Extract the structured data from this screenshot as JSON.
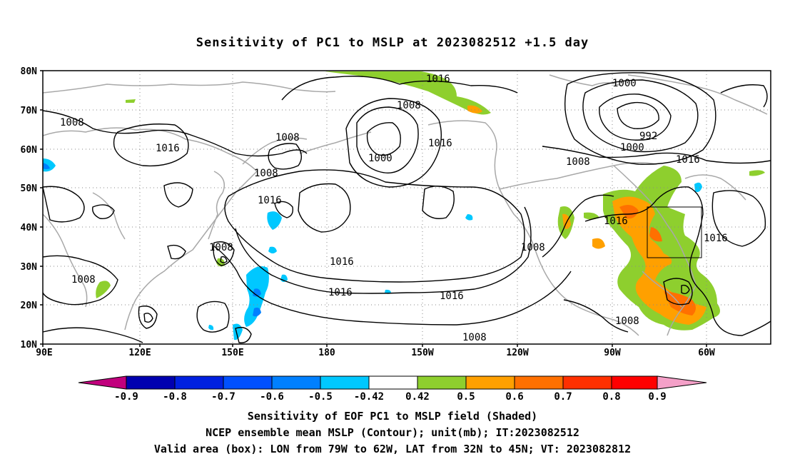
{
  "title": "Sensitivity of PC1 to MSLP at 2023082512 +1.5 day",
  "lat_labels": [
    "80N",
    "70N",
    "60N",
    "50N",
    "40N",
    "30N",
    "20N",
    "10N"
  ],
  "lon_labels": [
    "90E",
    "120E",
    "150E",
    "180",
    "150W",
    "120W",
    "90W",
    "60W"
  ],
  "contour_labels": [
    {
      "text": "1016",
      "id": "c1"
    },
    {
      "text": "1000",
      "id": "c2"
    },
    {
      "text": "1008",
      "id": "c3"
    },
    {
      "text": "992",
      "id": "c4"
    },
    {
      "text": "1000",
      "id": "c5"
    },
    {
      "text": "1008",
      "id": "c6"
    },
    {
      "text": "1016",
      "id": "c7"
    },
    {
      "text": "1016",
      "id": "c8"
    },
    {
      "text": "1008",
      "id": "c9"
    },
    {
      "text": "1008",
      "id": "c10"
    },
    {
      "text": "1000",
      "id": "c11"
    },
    {
      "text": "1008",
      "id": "c12"
    },
    {
      "text": "1016",
      "id": "c13"
    },
    {
      "text": "1008",
      "id": "c14"
    },
    {
      "text": "1016",
      "id": "c15"
    },
    {
      "text": "1016",
      "id": "c16"
    },
    {
      "text": "1016",
      "id": "c17"
    },
    {
      "text": "1008",
      "id": "c18"
    },
    {
      "text": "1008",
      "id": "c19"
    },
    {
      "text": "1016",
      "id": "c20"
    },
    {
      "text": "1008",
      "id": "c21"
    },
    {
      "text": "1008",
      "id": "c22"
    },
    {
      "text": "1016",
      "id": "c23"
    }
  ],
  "colorbar": {
    "colors": [
      "#c1007d",
      "#0000b0",
      "#0020e0",
      "#0050ff",
      "#0080ff",
      "#00c8ff",
      "#ffffff",
      "#8ecf2e",
      "#ffa000",
      "#ff7000",
      "#ff3000",
      "#ff0000",
      "#f4a0c8"
    ],
    "labels": [
      "-0.9",
      "-0.8",
      "-0.7",
      "-0.6",
      "-0.5",
      "-0.42",
      "0.42",
      "0.5",
      "0.6",
      "0.7",
      "0.8",
      "0.9"
    ]
  },
  "caption": {
    "line1": "Sensitivity of EOF PC1 to MSLP field (Shaded)",
    "line2": "NCEP ensemble mean MSLP (Contour); unit(mb); IT:2023082512",
    "line3": "Valid area (box): LON from 79W to 62W, LAT from 32N to 45N; VT: 2023082812"
  }
}
